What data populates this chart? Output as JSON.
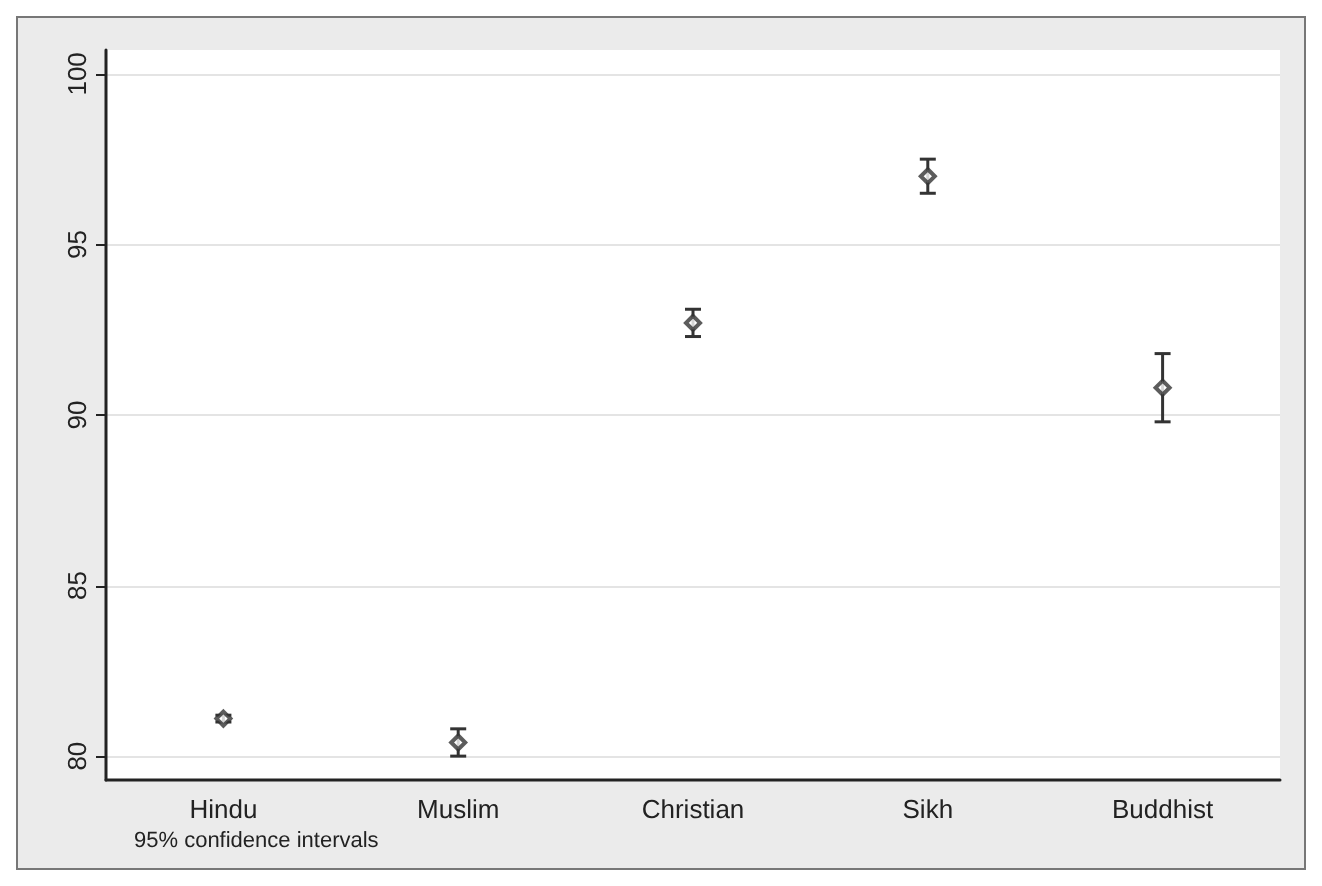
{
  "chart_data": {
    "type": "scatter",
    "categories": [
      "Hindu",
      "Muslim",
      "Christian",
      "Sikh",
      "Buddhist"
    ],
    "values": [
      81.1,
      80.4,
      92.7,
      97.0,
      90.8
    ],
    "errors": [
      0.1,
      0.4,
      0.4,
      0.5,
      1.0
    ],
    "color": "#333333",
    "marker": "diamond",
    "ylim": [
      79.3,
      100.7
    ],
    "yticks": [
      80,
      85,
      90,
      95,
      100
    ],
    "grid": "y",
    "annotations": [
      "95% confidence intervals"
    ]
  }
}
